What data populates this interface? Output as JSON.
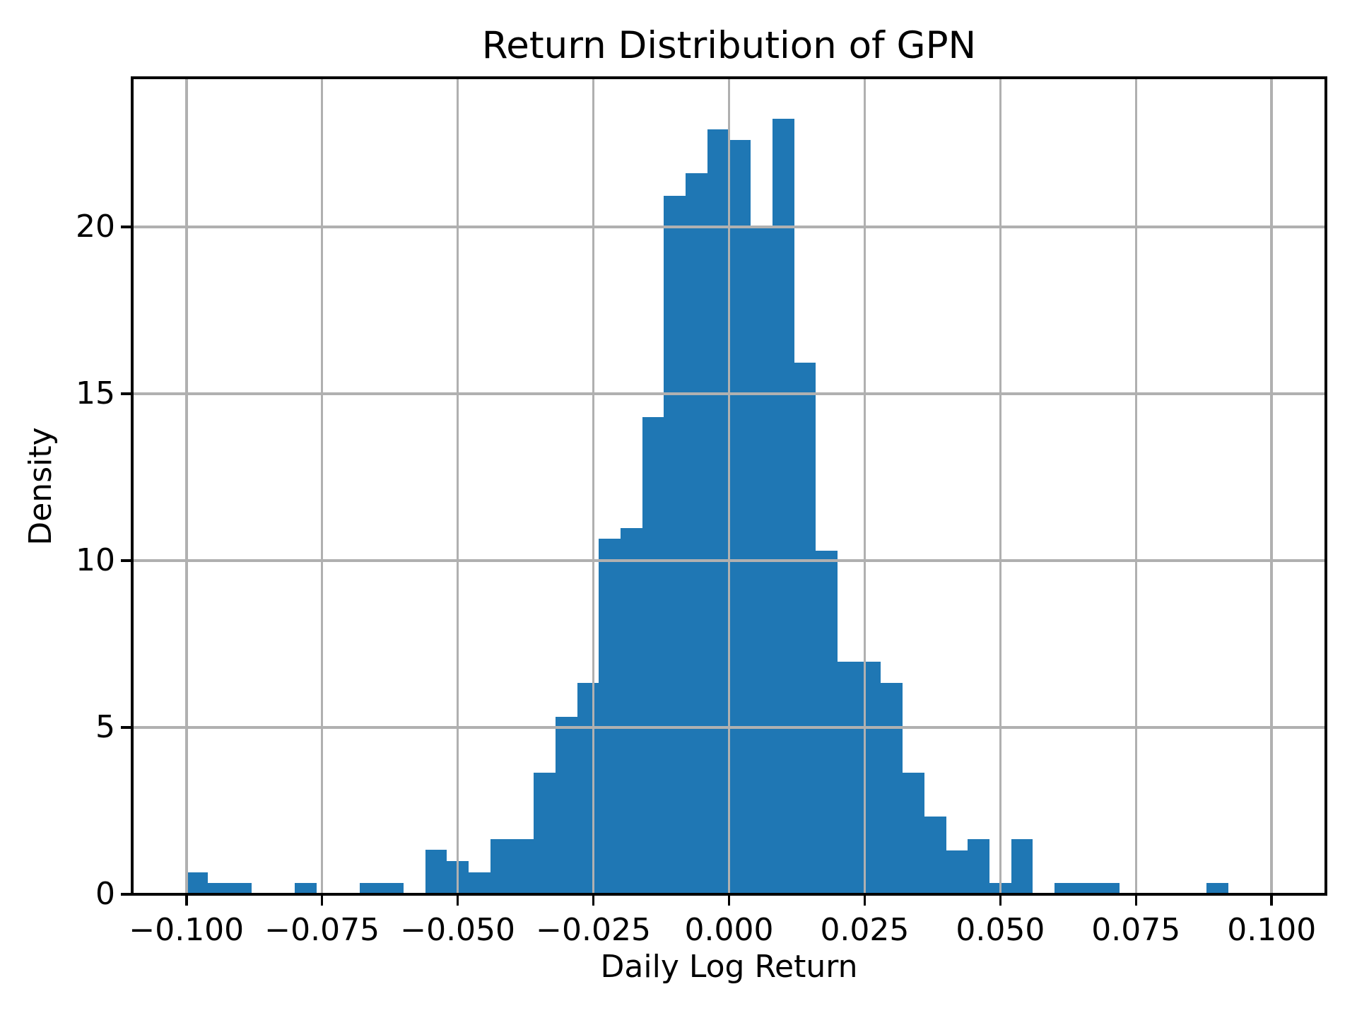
{
  "title": "Return Distribution of GPN",
  "axes": {
    "xlabel": "Daily Log Return",
    "ylabel": "Density"
  },
  "colors": {
    "bar": "#1f77b4",
    "grid": "#b0b0b0",
    "spine": "#000000",
    "text": "#000000",
    "background": "#ffffff"
  },
  "chart_data": {
    "type": "bar",
    "subtype": "histogram",
    "title": "Return Distribution of GPN",
    "xlabel": "Daily Log Return",
    "ylabel": "Density",
    "grid": true,
    "bin_start": -0.1,
    "bin_width": 0.004,
    "heights": [
      0.66,
      0.33,
      0.33,
      0,
      0,
      0.33,
      0,
      0,
      0.33,
      0.33,
      0,
      1.33,
      1.0,
      0.66,
      1.66,
      1.66,
      3.65,
      5.31,
      6.33,
      10.65,
      10.97,
      14.3,
      20.93,
      21.6,
      22.92,
      22.6,
      20.0,
      23.25,
      15.93,
      10.3,
      6.98,
      6.98,
      6.33,
      3.65,
      2.33,
      1.32,
      1.66,
      0.33,
      1.66,
      0,
      0.33,
      0.33,
      0.33,
      0,
      0,
      0,
      0,
      0.33
    ],
    "xlim": [
      -0.11,
      0.11
    ],
    "ylim": [
      0,
      24.47
    ],
    "x_ticks": [
      {
        "value": -0.1,
        "label": "−0.100"
      },
      {
        "value": -0.075,
        "label": "−0.075"
      },
      {
        "value": -0.05,
        "label": "−0.050"
      },
      {
        "value": -0.025,
        "label": "−0.025"
      },
      {
        "value": 0.0,
        "label": "0.000"
      },
      {
        "value": 0.025,
        "label": "0.025"
      },
      {
        "value": 0.05,
        "label": "0.050"
      },
      {
        "value": 0.075,
        "label": "0.075"
      },
      {
        "value": 0.1,
        "label": "0.100"
      }
    ],
    "y_ticks": [
      {
        "value": 0,
        "label": "0"
      },
      {
        "value": 5,
        "label": "5"
      },
      {
        "value": 10,
        "label": "10"
      },
      {
        "value": 15,
        "label": "15"
      },
      {
        "value": 20,
        "label": "20"
      }
    ]
  }
}
